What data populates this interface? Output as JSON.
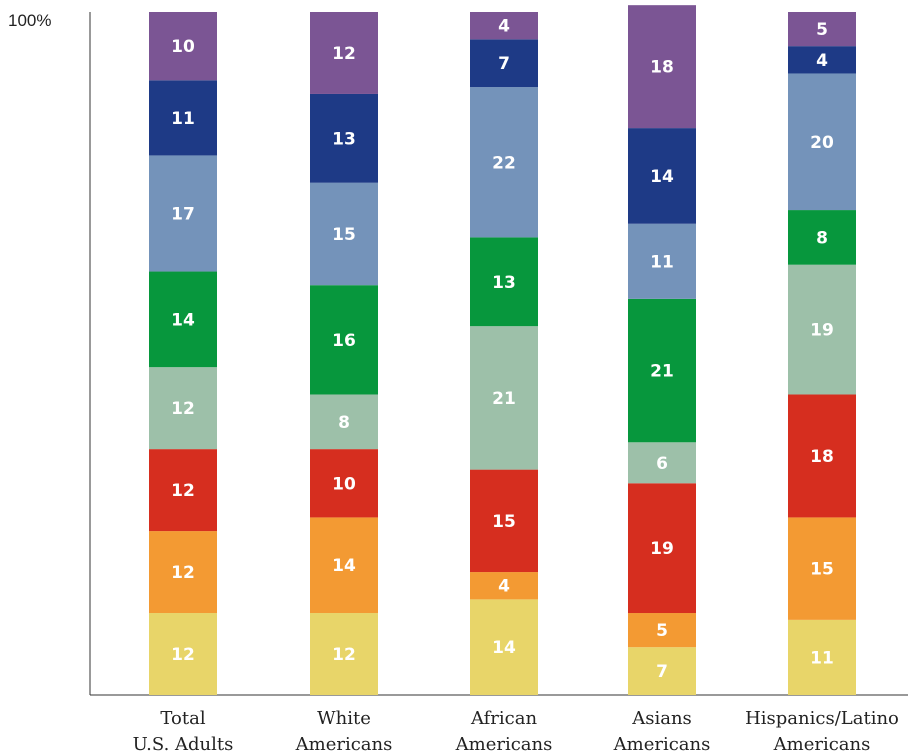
{
  "chart_data": {
    "type": "bar",
    "stacked": true,
    "orientation": "vertical",
    "ylim": [
      0,
      100
    ],
    "y_axis_top_label": "100%",
    "grid": false,
    "categories": [
      [
        "Total",
        "U.S. Adults"
      ],
      [
        "White",
        "Americans"
      ],
      [
        "African",
        "Americans"
      ],
      [
        "Asians",
        "Americans"
      ],
      [
        "Hispanics/Latino",
        "Americans"
      ]
    ],
    "series": [
      {
        "color": "#e8d569",
        "values": [
          12,
          12,
          14,
          7,
          11
        ]
      },
      {
        "color": "#f39a33",
        "values": [
          12,
          14,
          4,
          5,
          15
        ]
      },
      {
        "color": "#d62e1f",
        "values": [
          12,
          10,
          15,
          19,
          18
        ]
      },
      {
        "color": "#9dc0a9",
        "values": [
          12,
          8,
          21,
          6,
          19
        ]
      },
      {
        "color": "#07973d",
        "values": [
          14,
          16,
          13,
          21,
          8
        ]
      },
      {
        "color": "#7493ba",
        "values": [
          17,
          15,
          22,
          11,
          20
        ]
      },
      {
        "color": "#1e3a86",
        "values": [
          11,
          13,
          7,
          14,
          4
        ]
      },
      {
        "color": "#7b5594",
        "values": [
          10,
          12,
          4,
          18,
          5
        ]
      }
    ]
  }
}
